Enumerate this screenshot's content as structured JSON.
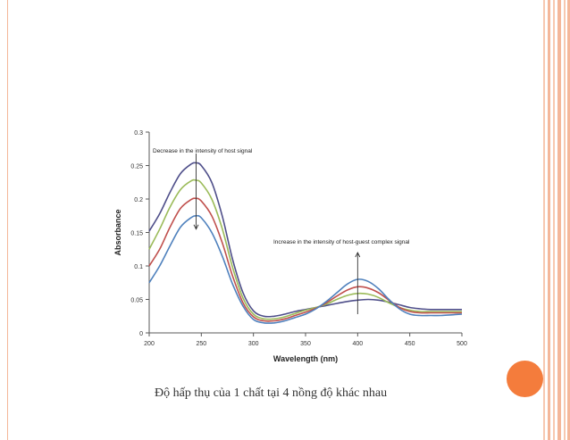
{
  "colors": {
    "accent": "#f47c3c",
    "border": "#f4b79a",
    "series": [
      "#4f4f8a",
      "#9bbb59",
      "#c0504d",
      "#4f81bd"
    ],
    "arrow": "#333333"
  },
  "caption": "Độ hấp thụ của 1 chất  tại 4 nồng độ khác nhau",
  "chart_data": {
    "type": "line",
    "xlabel": "Wavelength (nm)",
    "ylabel": "Absorbance",
    "xlim": [
      200,
      500
    ],
    "ylim": [
      0,
      0.3
    ],
    "xticks": [
      "200",
      "250",
      "300",
      "350",
      "400",
      "450",
      "500"
    ],
    "yticks": [
      "0",
      "0.05",
      "0.1",
      "0.15",
      "0.2",
      "0.25",
      "0.3"
    ],
    "grid": false,
    "annotations": [
      {
        "text": "Decrease in the intensity of host signal",
        "arrow": "down",
        "x": 245,
        "from": 0.268,
        "to": 0.155
      },
      {
        "text": "Increase in the intensity of host-guest complex signal",
        "arrow": "up",
        "x": 400,
        "from": 0.028,
        "to": 0.12
      }
    ],
    "x": [
      200,
      210,
      220,
      230,
      240,
      245,
      250,
      260,
      270,
      280,
      290,
      300,
      310,
      320,
      330,
      340,
      350,
      360,
      370,
      380,
      390,
      400,
      410,
      420,
      430,
      440,
      450,
      460,
      470,
      480,
      490,
      500
    ],
    "series": [
      {
        "values": [
          0.152,
          0.178,
          0.21,
          0.238,
          0.252,
          0.254,
          0.25,
          0.225,
          0.175,
          0.11,
          0.06,
          0.033,
          0.025,
          0.025,
          0.028,
          0.032,
          0.035,
          0.038,
          0.041,
          0.044,
          0.047,
          0.049,
          0.05,
          0.049,
          0.046,
          0.042,
          0.038,
          0.036,
          0.035,
          0.035,
          0.035,
          0.035
        ]
      },
      {
        "values": [
          0.125,
          0.155,
          0.188,
          0.214,
          0.227,
          0.228,
          0.224,
          0.2,
          0.156,
          0.098,
          0.052,
          0.028,
          0.021,
          0.021,
          0.024,
          0.029,
          0.034,
          0.038,
          0.043,
          0.05,
          0.056,
          0.059,
          0.058,
          0.053,
          0.045,
          0.038,
          0.034,
          0.032,
          0.032,
          0.032,
          0.032,
          0.032
        ]
      },
      {
        "values": [
          0.1,
          0.125,
          0.158,
          0.186,
          0.199,
          0.201,
          0.197,
          0.175,
          0.135,
          0.085,
          0.045,
          0.024,
          0.018,
          0.018,
          0.021,
          0.026,
          0.031,
          0.037,
          0.045,
          0.055,
          0.064,
          0.069,
          0.067,
          0.06,
          0.049,
          0.038,
          0.032,
          0.03,
          0.03,
          0.03,
          0.03,
          0.03
        ]
      },
      {
        "values": [
          0.075,
          0.1,
          0.13,
          0.158,
          0.172,
          0.175,
          0.172,
          0.15,
          0.115,
          0.073,
          0.04,
          0.02,
          0.015,
          0.015,
          0.018,
          0.023,
          0.028,
          0.036,
          0.047,
          0.06,
          0.073,
          0.08,
          0.077,
          0.066,
          0.05,
          0.036,
          0.028,
          0.026,
          0.026,
          0.026,
          0.027,
          0.028
        ]
      }
    ]
  }
}
